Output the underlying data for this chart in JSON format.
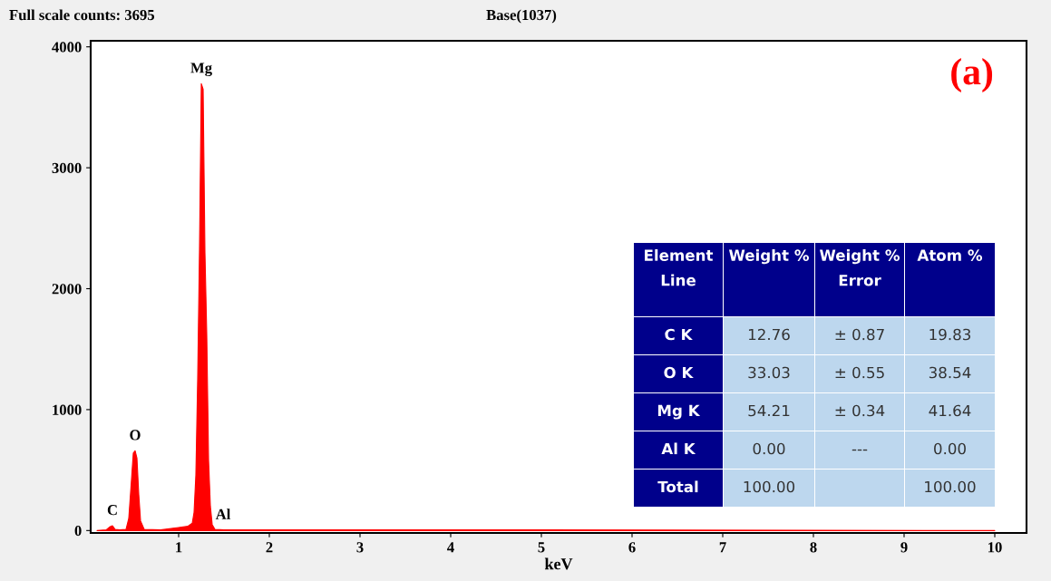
{
  "chart_data": {
    "type": "area",
    "title": "Full scale counts: 3695",
    "subtitle": "Base(1037)",
    "xlabel": "keV",
    "x": [
      0.1,
      0.2,
      0.24,
      0.27,
      0.3,
      0.35,
      0.42,
      0.45,
      0.48,
      0.5,
      0.52,
      0.54,
      0.56,
      0.58,
      0.62,
      0.8,
      0.9,
      1.0,
      1.1,
      1.15,
      1.17,
      1.19,
      1.21,
      1.23,
      1.25,
      1.27,
      1.29,
      1.31,
      1.33,
      1.35,
      1.37,
      1.4,
      1.5,
      2.0,
      5.0,
      10.0
    ],
    "series": [
      {
        "color": "#ff0000",
        "values": [
          0,
          5,
          30,
          40,
          10,
          5,
          10,
          100,
          420,
          640,
          660,
          600,
          300,
          80,
          10,
          5,
          15,
          25,
          35,
          60,
          150,
          460,
          1250,
          2320,
          3695,
          3650,
          2300,
          1620,
          580,
          200,
          50,
          10,
          5,
          5,
          5,
          0
        ]
      }
    ],
    "xlim": [
      0.03,
      10.35
    ],
    "xticks": [
      1,
      2,
      3,
      4,
      5,
      6,
      7,
      8,
      9,
      10
    ],
    "ylim": [
      -20,
      4050
    ],
    "yticks": [
      0,
      1000,
      2000,
      3000,
      4000
    ],
    "grid": false,
    "annotations": [
      "(a)",
      {
        "text": "C",
        "x": 0.27,
        "y": 40
      },
      {
        "text": "O",
        "x": 0.52,
        "y": 660
      },
      {
        "text": "Mg",
        "x": 1.25,
        "y": 3695
      },
      {
        "text": "Al",
        "x": 1.49,
        "y": 5
      },
      "Element\nLine",
      "Weight %",
      "Weight %\nError",
      "Atom %",
      "C K",
      "12.76",
      "± 0.87",
      "19.83",
      "O K",
      "33.03",
      "± 0.55",
      "38.54",
      "Mg K",
      "54.21",
      "± 0.34",
      "41.64",
      "Al K",
      "0.00",
      "---",
      "0.00",
      "Total",
      "100.00",
      null,
      "100.00"
    ]
  }
}
